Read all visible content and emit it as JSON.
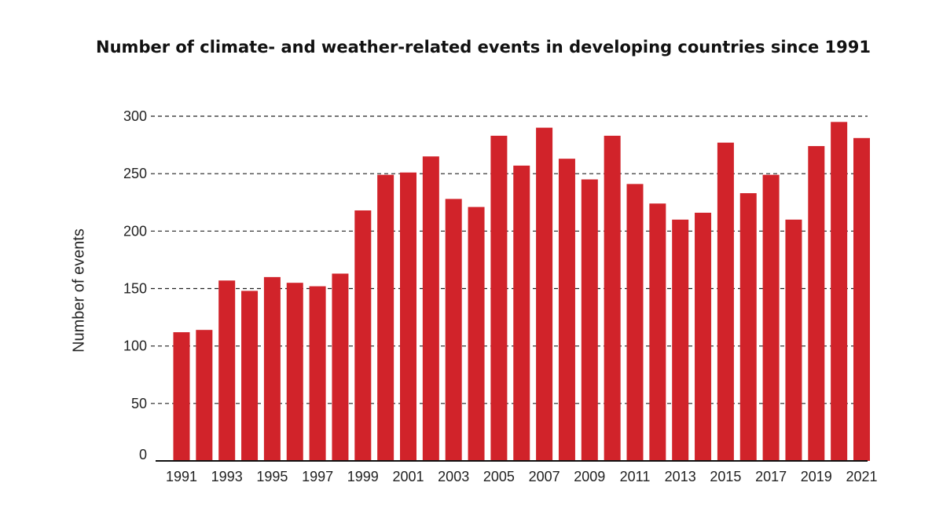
{
  "chart_data": {
    "type": "bar",
    "title": "Number of climate- and weather-related events in developing countries since 1991",
    "xlabel": "",
    "ylabel": "Number of events",
    "ylim": [
      0,
      300
    ],
    "yticks": [
      0,
      50,
      100,
      150,
      200,
      250,
      300
    ],
    "grid": "horizontal dashed",
    "bar_color": "#d1232a",
    "categories": [
      "1991",
      "1992",
      "1993",
      "1994",
      "1995",
      "1996",
      "1997",
      "1998",
      "1999",
      "2000",
      "2001",
      "2002",
      "2003",
      "2004",
      "2005",
      "2006",
      "2007",
      "2008",
      "2009",
      "2010",
      "2011",
      "2012",
      "2013",
      "2014",
      "2015",
      "2016",
      "2017",
      "2018",
      "2019",
      "2020",
      "2021"
    ],
    "values": [
      112,
      114,
      157,
      148,
      160,
      155,
      152,
      163,
      218,
      249,
      251,
      265,
      228,
      221,
      283,
      257,
      290,
      263,
      245,
      283,
      241,
      224,
      210,
      216,
      277,
      233,
      249,
      210,
      274,
      295,
      281
    ],
    "xtick_labels": [
      "1991",
      "1993",
      "1995",
      "1997",
      "1999",
      "2001",
      "2003",
      "2005",
      "2007",
      "2009",
      "2011",
      "2013",
      "2015",
      "2017",
      "2019",
      "2021"
    ]
  }
}
